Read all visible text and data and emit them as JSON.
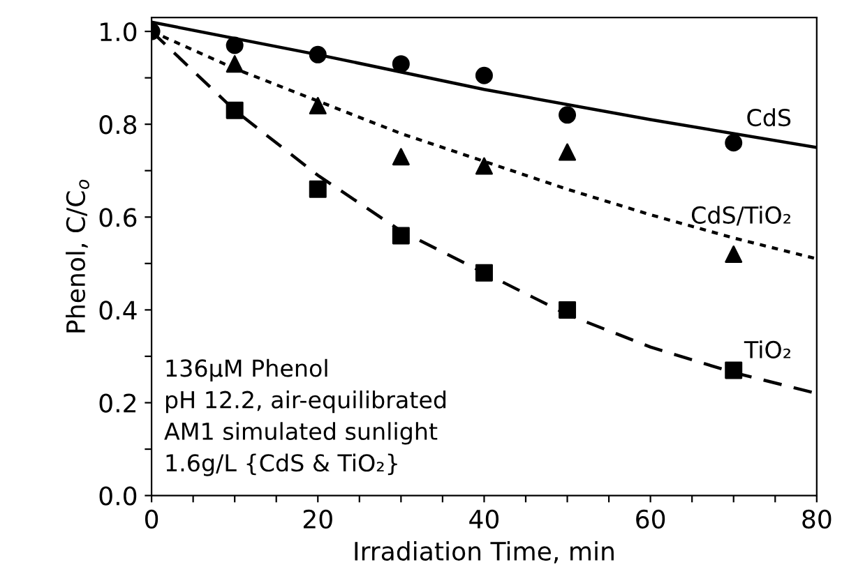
{
  "chart_data": {
    "type": "scatter",
    "xlabel": "Irradiation Time, min",
    "ylabel": "Phenol, C/C$_{o}$",
    "annotations": [
      "136μM Phenol",
      "pH 12.2, air-equilibrated",
      "AM1 simulated sunlight",
      "1.6g/L {CdS & TiO₂}"
    ],
    "series": [
      {
        "marker": "circle",
        "color": "#000000",
        "x": [
          0,
          10,
          20,
          30,
          40,
          50,
          70
        ],
        "values": [
          1.0,
          0.97,
          0.95,
          0.93,
          0.905,
          0.82,
          0.76
        ]
      },
      {
        "marker": "triangle",
        "color": "#000000",
        "x": [
          10,
          20,
          30,
          40,
          50,
          70
        ],
        "values": [
          0.93,
          0.84,
          0.73,
          0.71,
          0.74,
          0.52
        ]
      },
      {
        "marker": "square",
        "color": "#000000",
        "x": [
          10,
          20,
          30,
          40,
          50,
          70
        ],
        "values": [
          0.83,
          0.66,
          0.56,
          0.48,
          0.4,
          0.27
        ]
      },
      {
        "type": "line",
        "name": "CdS",
        "line_style": "solid",
        "color": "#000000",
        "x": [
          0,
          20,
          40,
          60,
          80
        ],
        "values": [
          1.02,
          0.95,
          0.875,
          0.81,
          0.75
        ]
      },
      {
        "type": "line",
        "name": "CdS/TiO₂",
        "line_style": "dotted",
        "color": "#000000",
        "x": [
          0,
          10,
          20,
          30,
          40,
          50,
          60,
          70,
          80
        ],
        "values": [
          1.0,
          0.92,
          0.85,
          0.78,
          0.72,
          0.66,
          0.605,
          0.555,
          0.51
        ]
      },
      {
        "type": "line",
        "name": "TiO₂",
        "line_style": "dashed",
        "color": "#000000",
        "x": [
          0,
          10,
          20,
          30,
          40,
          50,
          60,
          70,
          80
        ],
        "values": [
          1.0,
          0.83,
          0.69,
          0.57,
          0.48,
          0.39,
          0.32,
          0.265,
          0.22
        ]
      }
    ],
    "xlim": [
      0,
      80
    ],
    "ylim": [
      0,
      1.03
    ],
    "xticks": [
      0,
      {
        "value": 5,
        "label": null
      },
      {
        "value": 10,
        "label": null
      },
      {
        "value": 15,
        "label": null
      },
      20,
      {
        "value": 25,
        "label": null
      },
      {
        "value": 30,
        "label": null
      },
      {
        "value": 35,
        "label": null
      },
      40,
      {
        "value": 45,
        "label": null
      },
      {
        "value": 50,
        "label": null
      },
      {
        "value": 55,
        "label": null
      },
      60,
      {
        "value": 65,
        "label": null
      },
      {
        "value": 70,
        "label": null
      },
      {
        "value": 75,
        "label": null
      },
      80
    ],
    "yticks": [
      {
        "value": 0,
        "label": "0.0"
      },
      {
        "value": 0.1,
        "label": null
      },
      {
        "value": 0.2,
        "label": "0.2"
      },
      {
        "value": 0.3,
        "label": null
      },
      {
        "value": 0.4,
        "label": "0.4"
      },
      {
        "value": 0.5,
        "label": null
      },
      {
        "value": 0.6,
        "label": "0.6"
      },
      {
        "value": 0.7,
        "label": null
      },
      {
        "value": 0.8,
        "label": "0.8"
      },
      {
        "value": 0.9,
        "label": null
      },
      {
        "value": 1.0,
        "label": "1.0"
      }
    ],
    "grid": false,
    "legend": false
  }
}
